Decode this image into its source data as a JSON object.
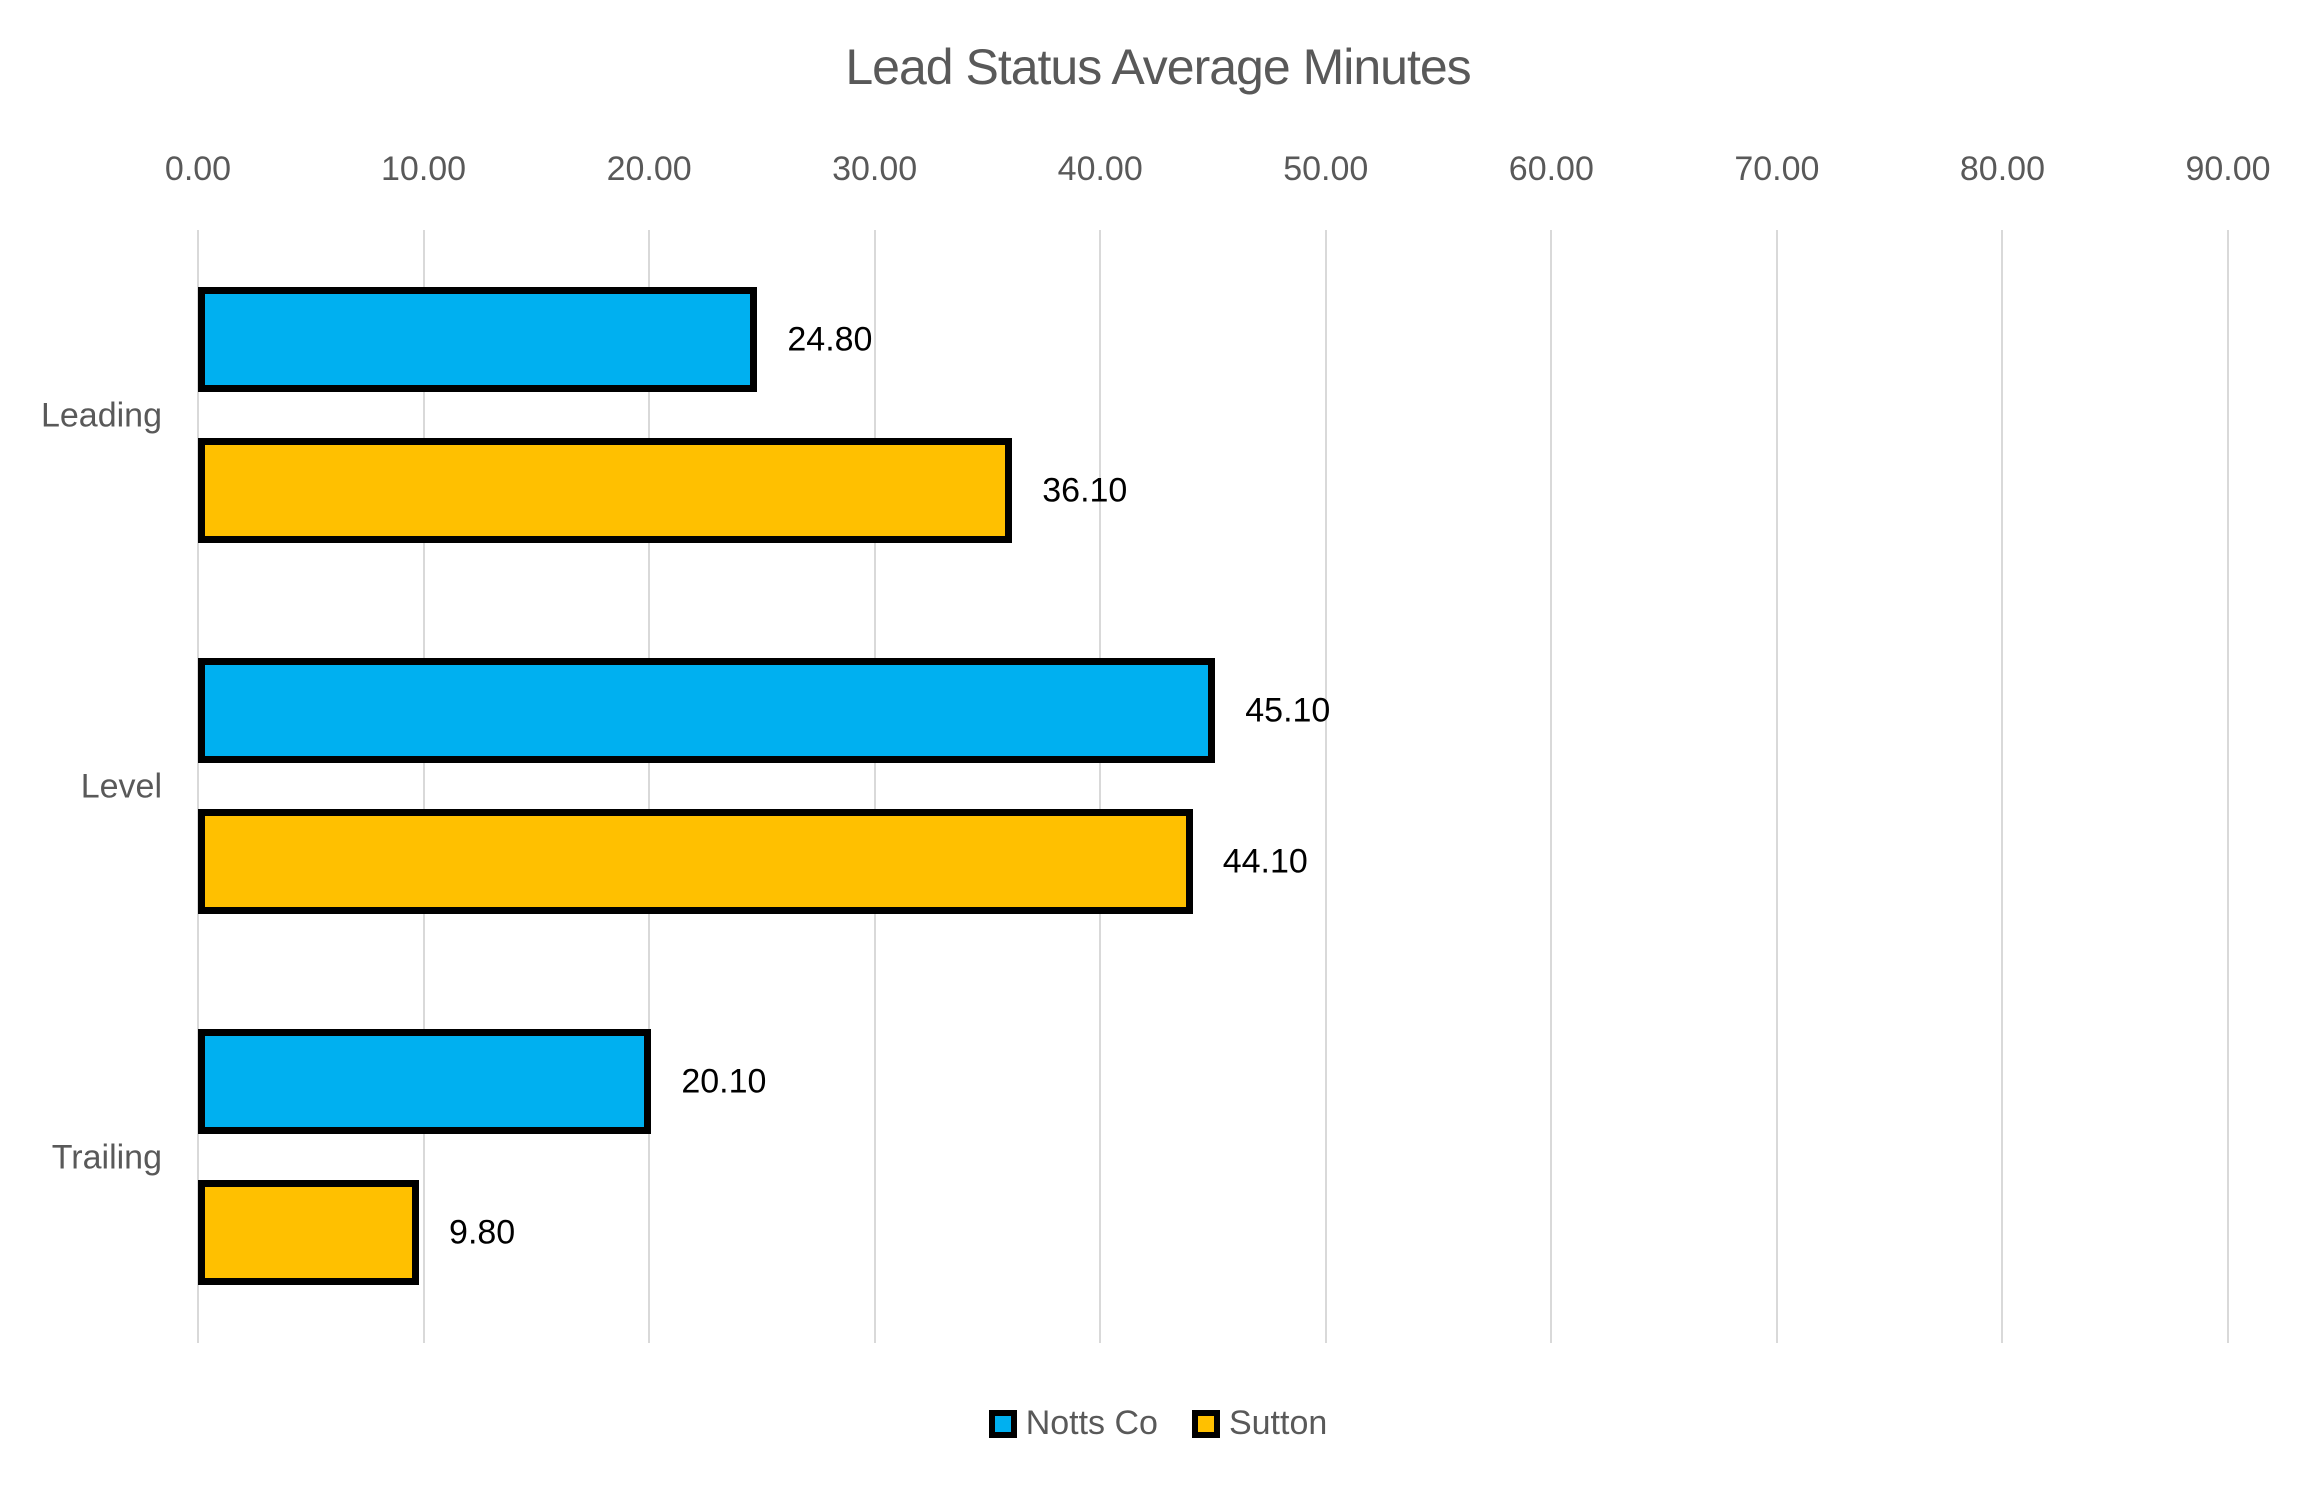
{
  "chart_data": {
    "type": "bar",
    "orientation": "horizontal",
    "title": "Lead Status Average Minutes",
    "categories": [
      "Leading",
      "Level",
      "Trailing"
    ],
    "series": [
      {
        "name": "Notts Co",
        "color": "#00B0F0",
        "values": [
          24.8,
          45.1,
          20.1
        ],
        "labels": [
          "24.80",
          "45.10",
          "20.10"
        ]
      },
      {
        "name": "Sutton",
        "color": "#FFC000",
        "values": [
          36.1,
          44.1,
          9.8
        ],
        "labels": [
          "36.10",
          "44.10",
          "9.80"
        ]
      }
    ],
    "x_ticks": [
      "0.00",
      "10.00",
      "20.00",
      "30.00",
      "40.00",
      "50.00",
      "60.00",
      "70.00",
      "80.00",
      "90.00"
    ],
    "xlim": [
      0,
      90
    ],
    "grid": true,
    "legend_position": "bottom",
    "styles": {
      "background": "#FFFFFF",
      "text_color": "#595959",
      "gridline_color": "#D9D9D9",
      "bar_border_color": "#000000",
      "value_label_color": "#000000"
    }
  }
}
